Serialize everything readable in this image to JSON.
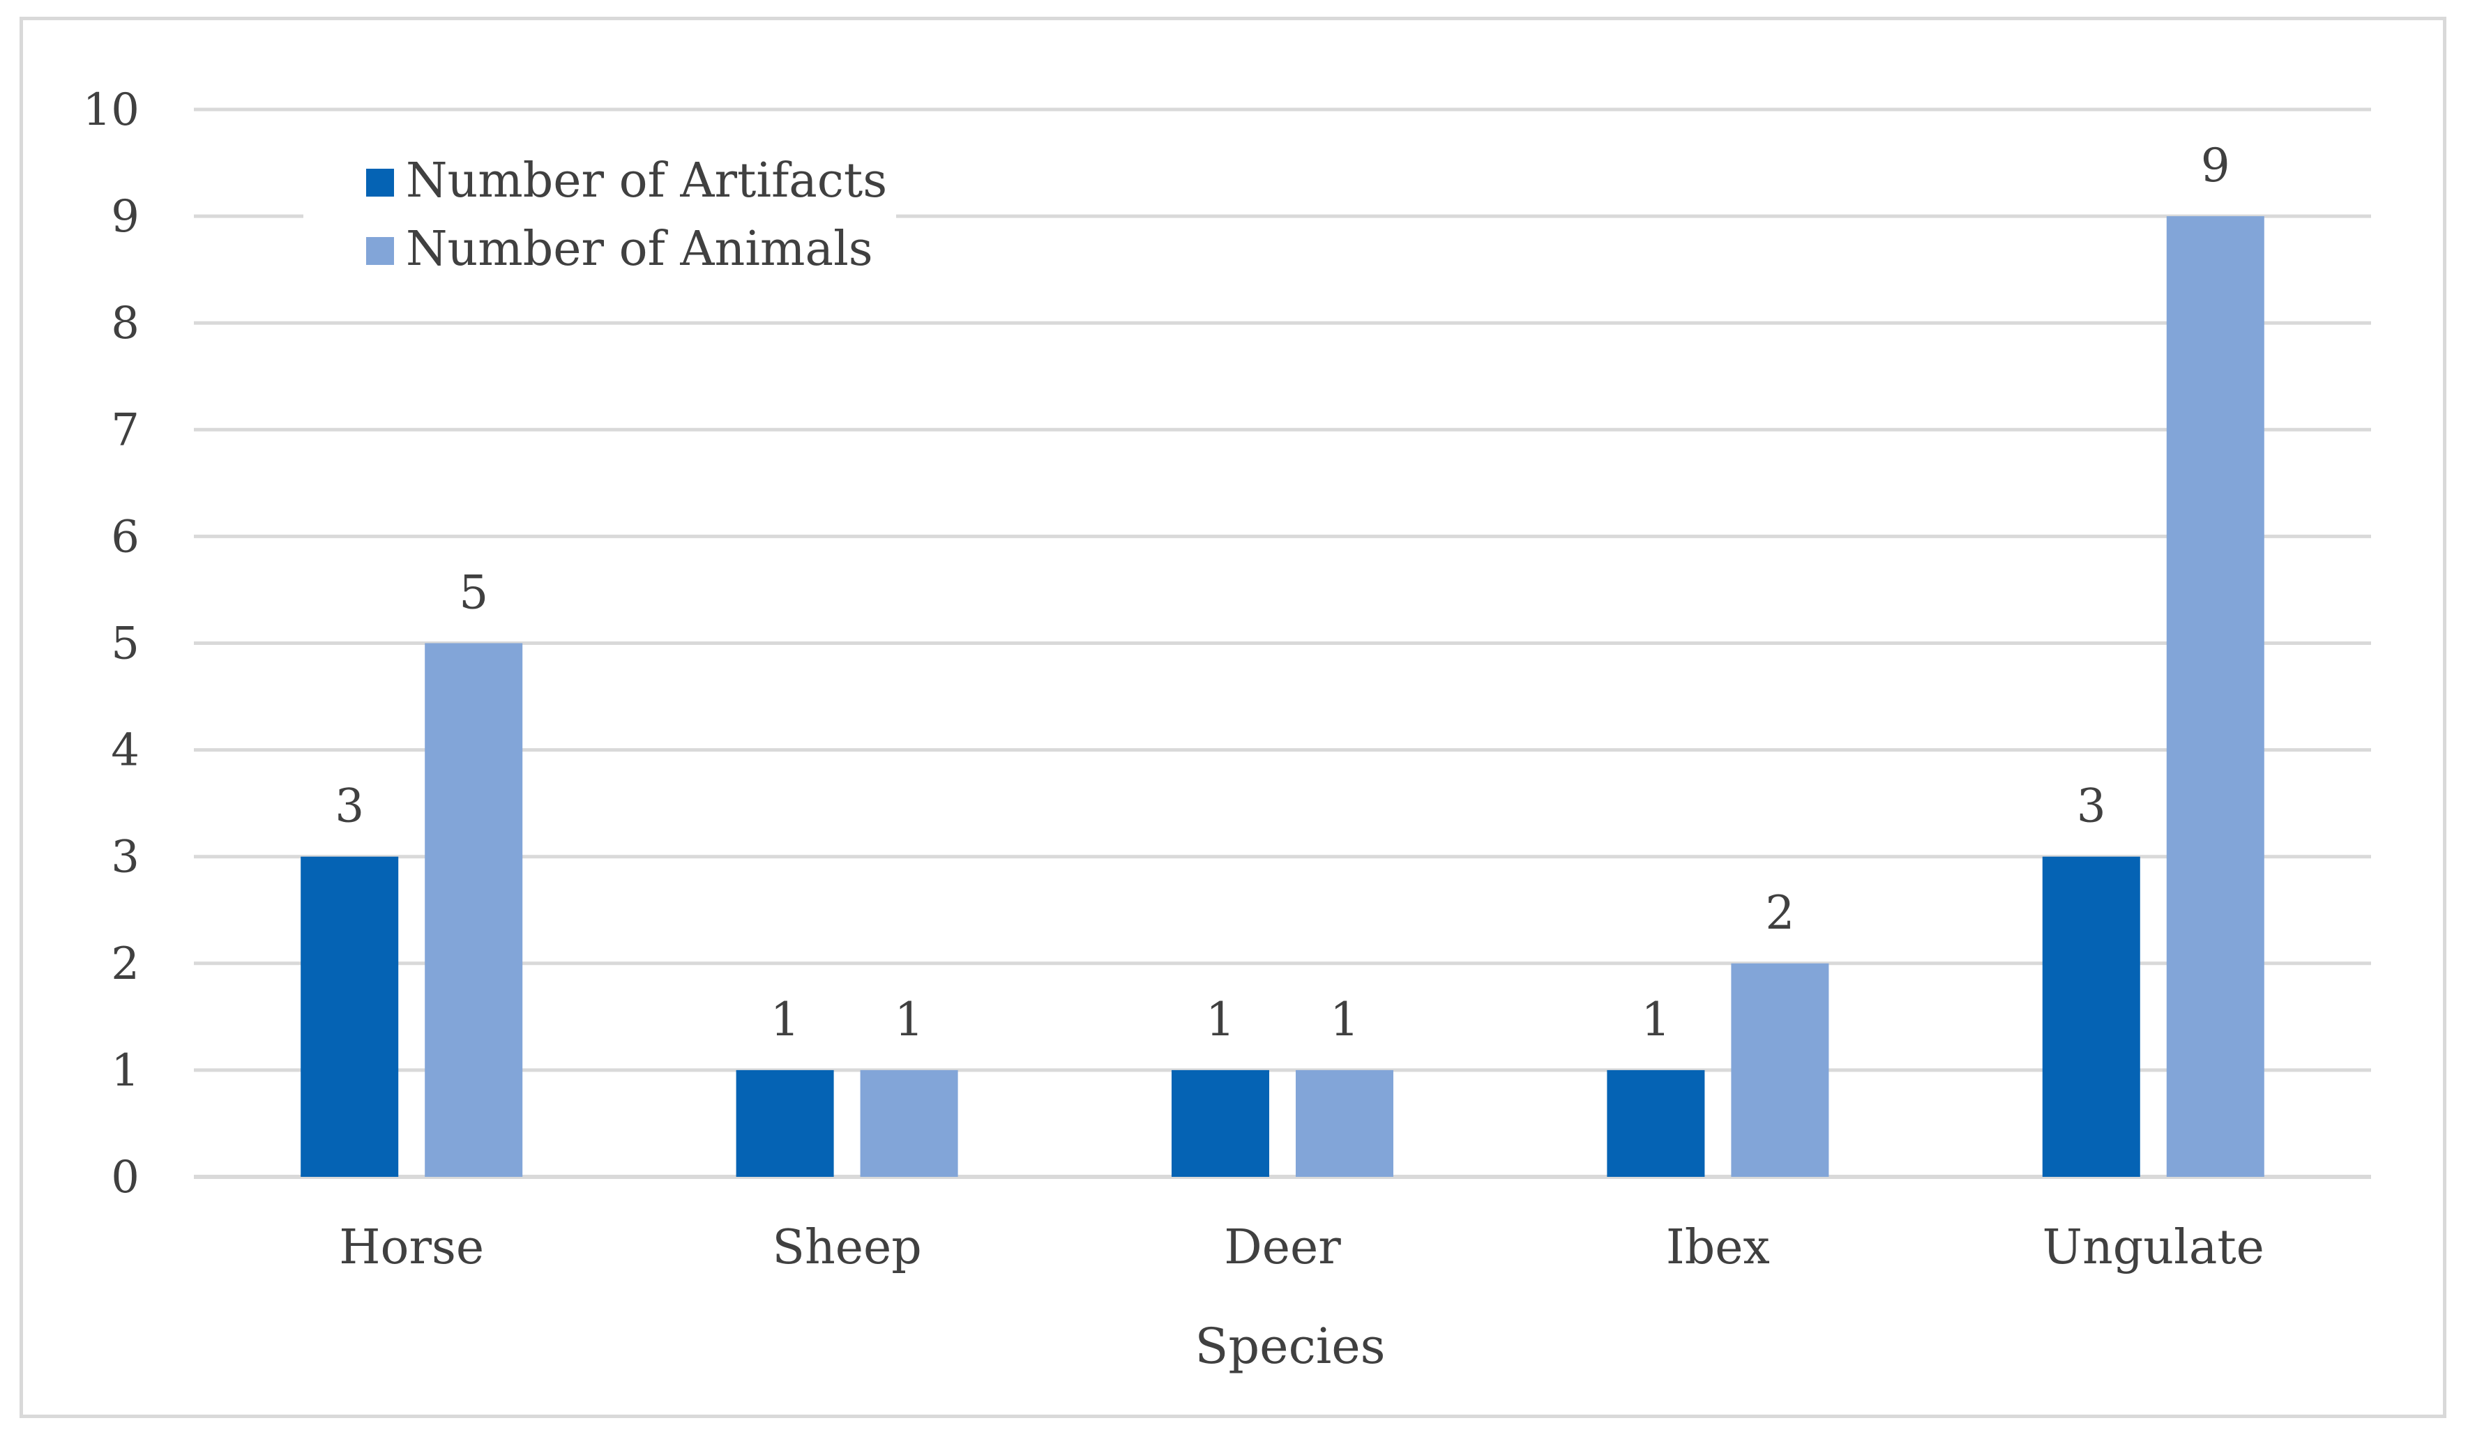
{
  "chart_data": {
    "type": "bar",
    "title": "",
    "xlabel": "Species",
    "ylabel": "",
    "categories": [
      "Horse",
      "Sheep",
      "Deer",
      "Ibex",
      "Ungulate"
    ],
    "series": [
      {
        "name": "Number of Artifacts",
        "values": [
          3,
          1,
          1,
          1,
          3
        ],
        "color": "#0563b4"
      },
      {
        "name": "Number of Animals",
        "values": [
          5,
          1,
          1,
          2,
          9
        ],
        "color": "#82a5d8"
      }
    ],
    "ylim": [
      0,
      10
    ],
    "yticks": [
      0,
      1,
      2,
      3,
      4,
      5,
      6,
      7,
      8,
      9,
      10
    ],
    "grid": true,
    "legend_position": "top-left",
    "data_labels": true,
    "gridline_color": "#d9d9d9",
    "text_color": "#404040"
  }
}
